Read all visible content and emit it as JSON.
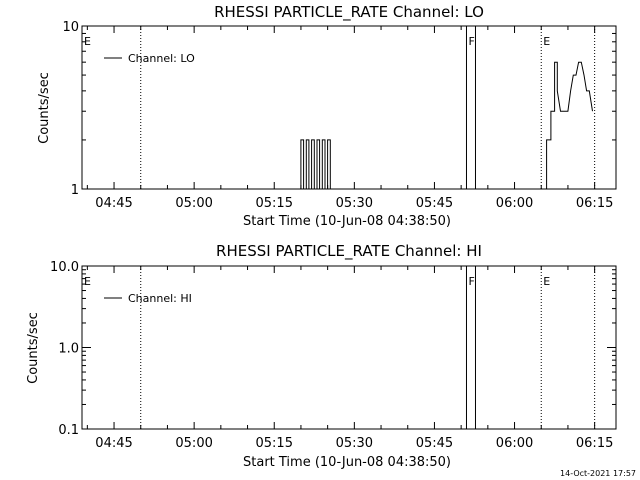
{
  "chart_data": [
    {
      "type": "line",
      "title": "RHESSI PARTICLE_RATE Channel: LO",
      "xlabel": "Start Time (10-Jun-08 04:38:50)",
      "ylabel": "Counts/sec",
      "xlim": [
        "04:39",
        "06:19"
      ],
      "ylim": [
        1,
        10
      ],
      "y_scale": "log",
      "x_ticks": [
        "04:45",
        "05:00",
        "05:15",
        "05:30",
        "05:45",
        "06:00",
        "06:15"
      ],
      "y_ticks": [
        "1",
        "10"
      ],
      "legend": "top-left",
      "series": [
        {
          "name": "Channel: LO",
          "x": [
            "05:20",
            "05:20",
            "05:20.5",
            "05:20.5",
            "05:21",
            "05:21",
            "05:21.5",
            "05:21.5",
            "05:22",
            "05:22",
            "05:22.5",
            "05:22.5",
            "05:23",
            "05:23",
            "05:23.5",
            "05:23.5",
            "05:24",
            "05:24",
            "05:24.5",
            "05:24.5",
            "05:25",
            "05:25",
            "05:25.5",
            "05:25.5",
            "05:26",
            "05:26",
            "06:06",
            "06:06",
            "06:06.8",
            "06:06.8",
            "06:07.5",
            "06:07.5",
            "06:08",
            "06:08",
            "06:08.6",
            "06:09",
            "06:09.5",
            "06:10",
            "06:10.5",
            "06:11",
            "06:11.5",
            "06:12",
            "06:12.5",
            "06:13",
            "06:13.5",
            "06:14",
            "06:14.6"
          ],
          "y": [
            1,
            2,
            2,
            1,
            1,
            2,
            2,
            1,
            1,
            2,
            2,
            1,
            1,
            2,
            2,
            1,
            1,
            2,
            2,
            1,
            1,
            2,
            2,
            1,
            1,
            1,
            1,
            2,
            2,
            3,
            3,
            6,
            6,
            4,
            3,
            3,
            3,
            3,
            4,
            5,
            5,
            6,
            6,
            5,
            4,
            4,
            3
          ]
        }
      ],
      "annotations": [
        {
          "x": "04:39",
          "label": "E",
          "line": false
        },
        {
          "x": "04:50",
          "label": "",
          "line": true
        },
        {
          "x": "05:51",
          "label": "F",
          "line": "solid-pair"
        },
        {
          "x": "06:05",
          "label": "E",
          "line": true
        },
        {
          "x": "06:15",
          "label": "",
          "line": true
        }
      ]
    },
    {
      "type": "line",
      "title": "RHESSI PARTICLE_RATE Channel: HI",
      "xlabel": "Start Time (10-Jun-08 04:38:50)",
      "ylabel": "Counts/sec",
      "xlim": [
        "04:39",
        "06:19"
      ],
      "ylim": [
        0.1,
        10
      ],
      "y_scale": "log",
      "x_ticks": [
        "04:45",
        "05:00",
        "05:15",
        "05:30",
        "05:45",
        "06:00",
        "06:15"
      ],
      "y_ticks": [
        "0.1",
        "1.0",
        "10.0"
      ],
      "legend": "top-left",
      "series": [
        {
          "name": "Channel: HI",
          "x": [],
          "y": []
        }
      ],
      "annotations": [
        {
          "x": "04:39",
          "label": "E",
          "line": false
        },
        {
          "x": "04:50",
          "label": "",
          "line": true
        },
        {
          "x": "05:51",
          "label": "F",
          "line": "solid-pair"
        },
        {
          "x": "06:05",
          "label": "E",
          "line": true
        },
        {
          "x": "06:15",
          "label": "",
          "line": true
        }
      ]
    }
  ],
  "footer": {
    "timestamp": "14-Oct-2021 17:57"
  }
}
